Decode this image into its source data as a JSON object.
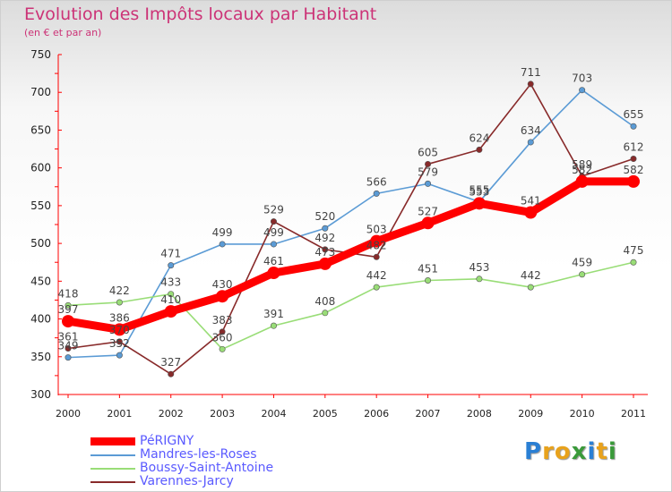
{
  "header": {
    "title": "Evolution des Impôts locaux par Habitant",
    "subtitle": "(en € et par an)"
  },
  "brand": {
    "letters": [
      "P",
      "r",
      "o",
      "x",
      "i",
      "t",
      "i"
    ],
    "colors": [
      "#2a7fd4",
      "#e8a21c",
      "#e8a21c",
      "#3a9a3a",
      "#2a7fd4",
      "#e8a21c",
      "#3a9a3a"
    ]
  },
  "chart_data": {
    "type": "line",
    "title": "Evolution des Impôts locaux par Habitant",
    "subtitle": "(en € et par an)",
    "xlabel": "",
    "ylabel": "",
    "x": [
      2000,
      2001,
      2002,
      2003,
      2004,
      2005,
      2006,
      2007,
      2008,
      2009,
      2010,
      2011
    ],
    "x_tick_labels": [
      "2000",
      "2001",
      "2002",
      "2003",
      "2004",
      "2005",
      "2006",
      "2007",
      "2008",
      "2009",
      "2010",
      "2011"
    ],
    "ylim": [
      300,
      750
    ],
    "y_ticks": [
      300,
      350,
      400,
      450,
      500,
      550,
      600,
      650,
      700,
      750
    ],
    "y_tick_labels": [
      "300",
      "350",
      "400",
      "450",
      "500",
      "550",
      "600",
      "650",
      "700",
      "750"
    ],
    "grid": false,
    "legend_position": "bottom-left",
    "series": [
      {
        "name": "PéRIGNY",
        "values": [
          397,
          386,
          410,
          430,
          461,
          473,
          503,
          527,
          553,
          541,
          582,
          582
        ],
        "labels": [
          "397",
          "386",
          "410",
          "430",
          "461",
          "473",
          "503",
          "527",
          "553",
          "541",
          "582",
          "582"
        ],
        "color": "#ff0000",
        "legend_color": "#5a5aff",
        "thick": true
      },
      {
        "name": "Mandres-les-Roses",
        "values": [
          349,
          352,
          471,
          499,
          499,
          520,
          566,
          579,
          555,
          634,
          703,
          655
        ],
        "labels": [
          "349",
          "352",
          "471",
          "499",
          "499",
          "520",
          "566",
          "579",
          "555",
          "634",
          "703",
          "655"
        ],
        "color": "#5b9bd5",
        "legend_color": "#5a5aff",
        "thick": false
      },
      {
        "name": "Boussy-Saint-Antoine",
        "values": [
          418,
          422,
          433,
          360,
          391,
          408,
          442,
          451,
          453,
          442,
          459,
          475
        ],
        "labels": [
          "418",
          "422",
          "433",
          "360",
          "391",
          "408",
          "442",
          "451",
          "453",
          "442",
          "459",
          "475"
        ],
        "color": "#99dd77",
        "legend_color": "#5a5aff",
        "thick": false
      },
      {
        "name": "Varennes-Jarcy",
        "values": [
          361,
          370,
          327,
          383,
          529,
          492,
          482,
          605,
          624,
          711,
          589,
          612
        ],
        "labels": [
          "361",
          "370",
          "327",
          "383",
          "529",
          "492",
          "482",
          "605",
          "624",
          "711",
          "589",
          "612"
        ],
        "color": "#882a2a",
        "legend_color": "#5a5aff",
        "thick": false
      }
    ]
  }
}
